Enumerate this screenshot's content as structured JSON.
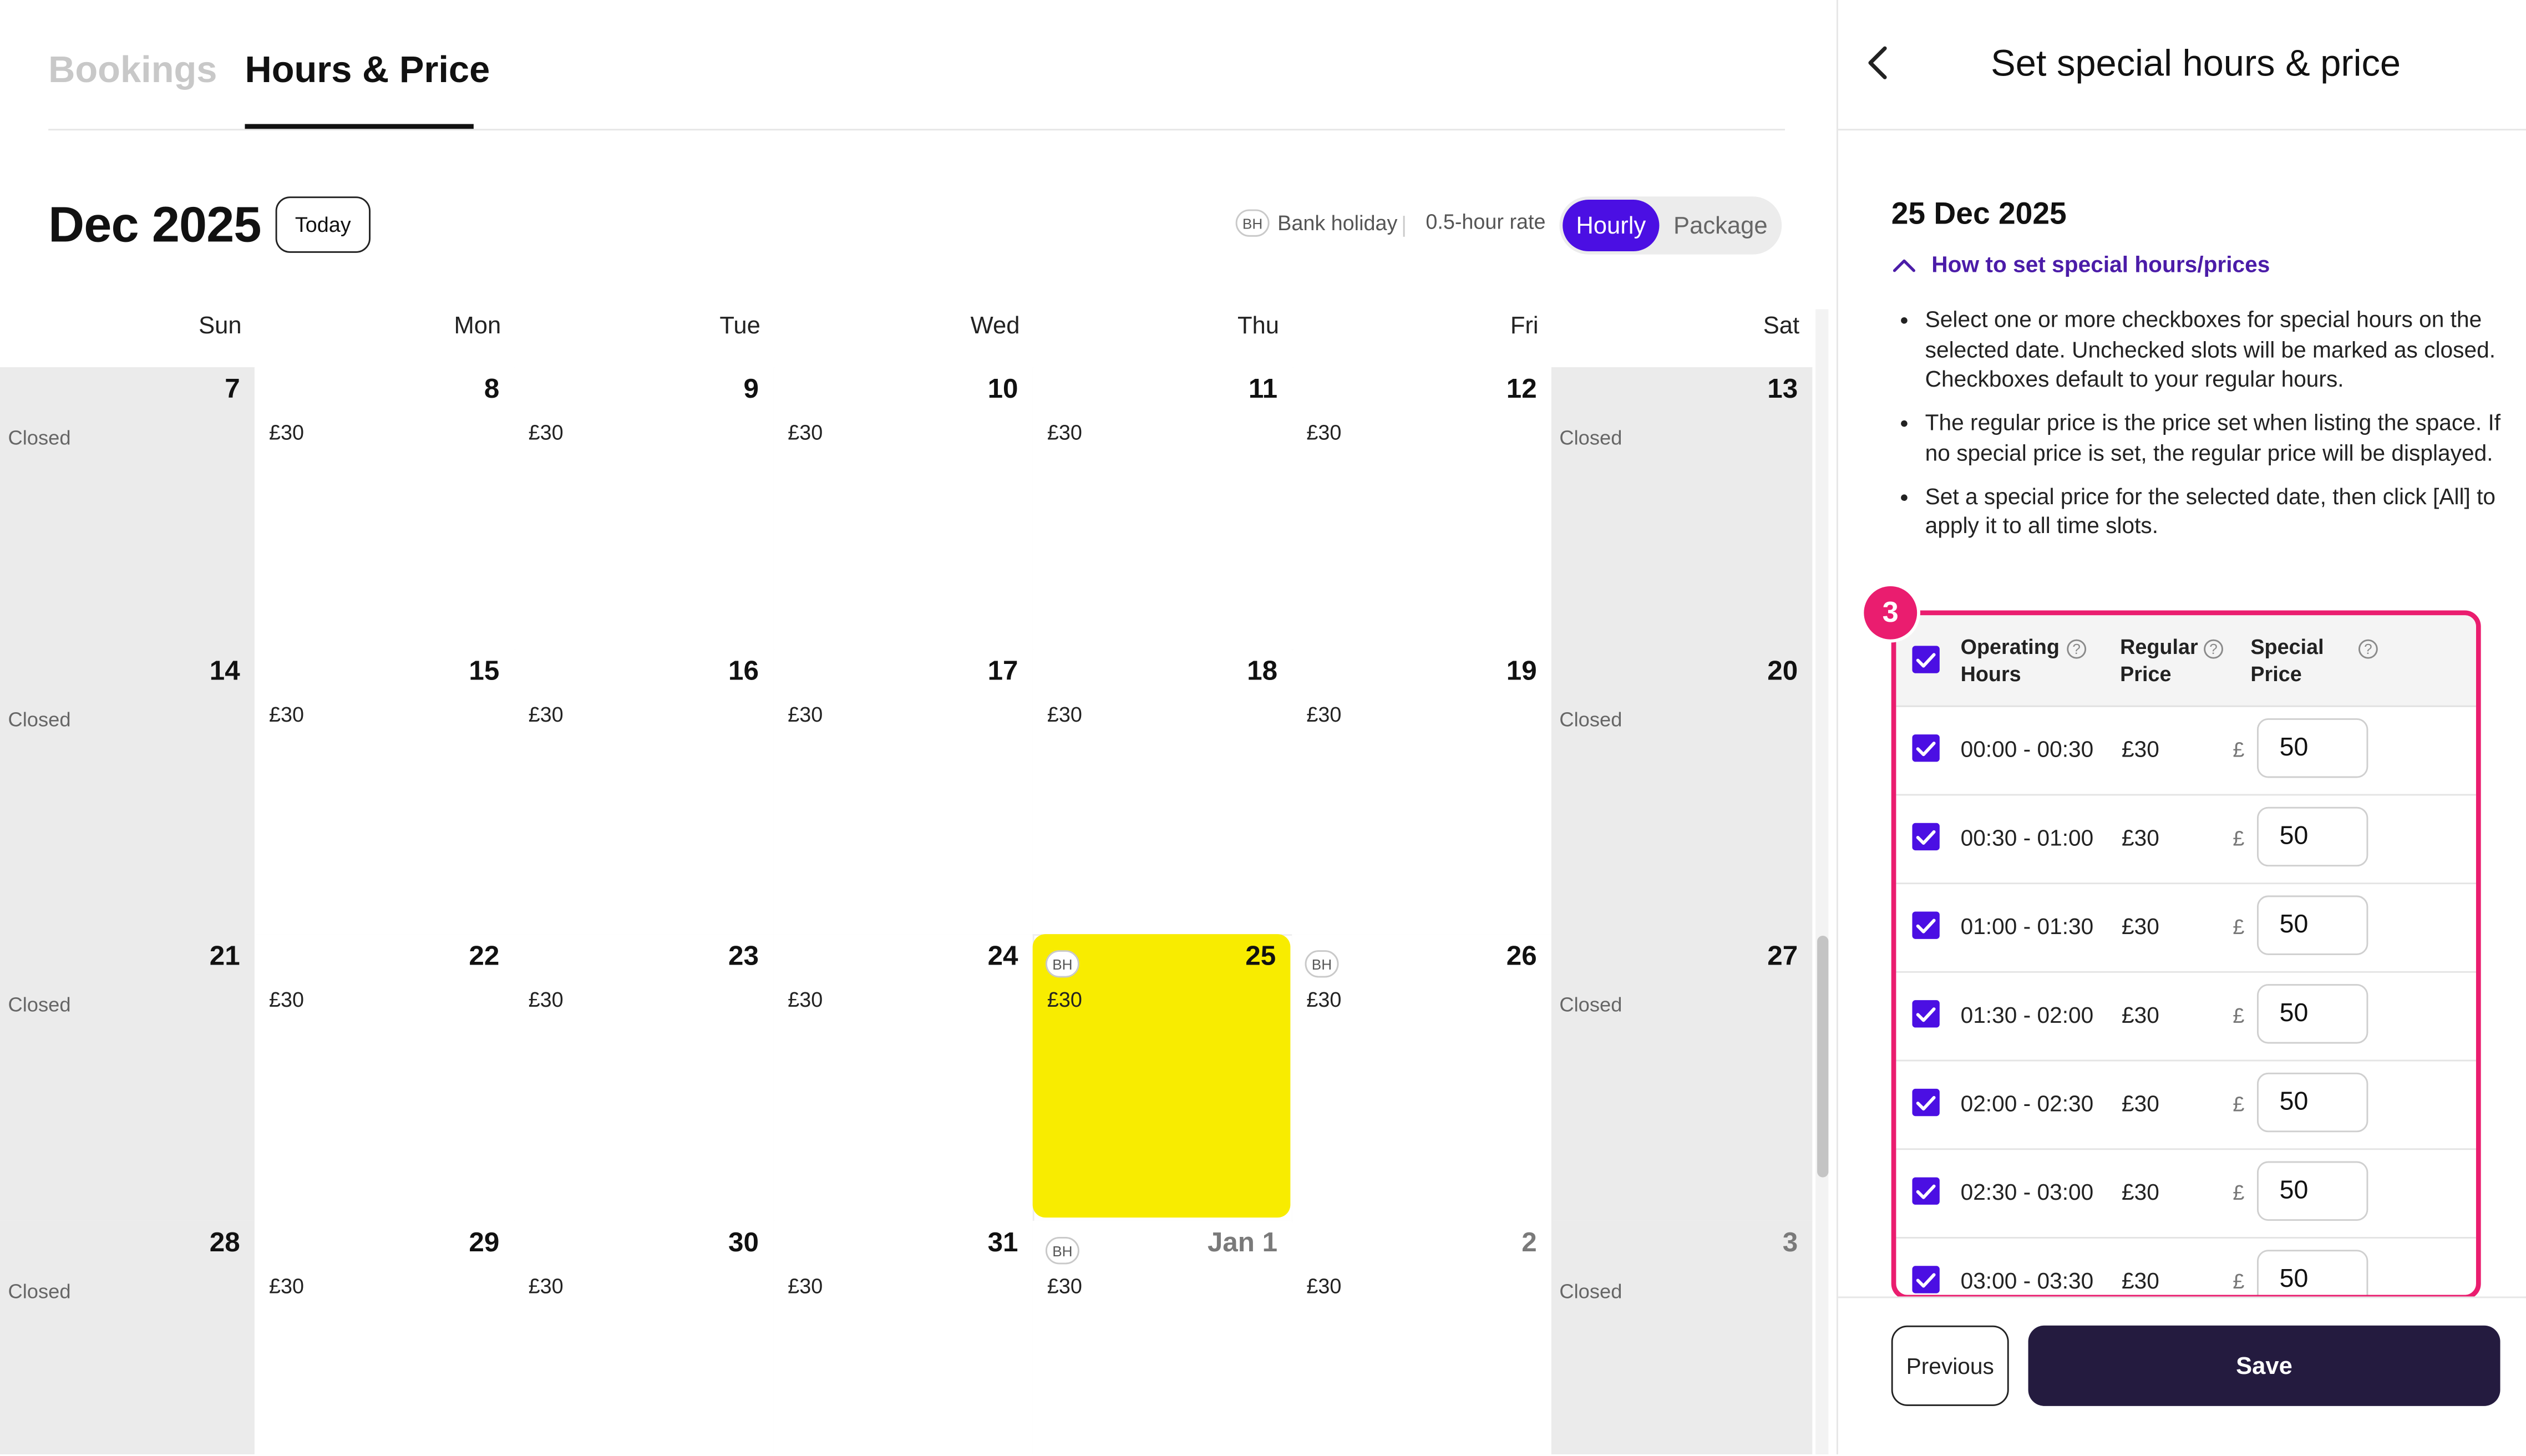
{
  "tabs": {
    "bookings": "Bookings",
    "hours_price": "Hours & Price"
  },
  "calendar": {
    "month_title": "Dec 2025",
    "today_label": "Today",
    "legend": {
      "bh_badge": "BH",
      "bank_holiday": "Bank holiday",
      "half_hour_rate": "0.5-hour rate"
    },
    "rate_toggle": {
      "hourly": "Hourly",
      "package": "Package",
      "selected": "Hourly"
    },
    "weekdays": [
      "Sun",
      "Mon",
      "Tue",
      "Wed",
      "Thu",
      "Fri",
      "Sat"
    ],
    "weeks": [
      [
        {
          "day": "7",
          "label": "Closed"
        },
        {
          "day": "8",
          "label": "£30"
        },
        {
          "day": "9",
          "label": "£30"
        },
        {
          "day": "10",
          "label": "£30"
        },
        {
          "day": "11",
          "label": "£30"
        },
        {
          "day": "12",
          "label": "£30"
        },
        {
          "day": "13",
          "label": "Closed"
        }
      ],
      [
        {
          "day": "14",
          "label": "Closed"
        },
        {
          "day": "15",
          "label": "£30"
        },
        {
          "day": "16",
          "label": "£30"
        },
        {
          "day": "17",
          "label": "£30"
        },
        {
          "day": "18",
          "label": "£30"
        },
        {
          "day": "19",
          "label": "£30"
        },
        {
          "day": "20",
          "label": "Closed"
        }
      ],
      [
        {
          "day": "21",
          "label": "Closed"
        },
        {
          "day": "22",
          "label": "£30"
        },
        {
          "day": "23",
          "label": "£30"
        },
        {
          "day": "24",
          "label": "£30"
        },
        {
          "day": "25",
          "label": "£30",
          "bh": true,
          "selected": true
        },
        {
          "day": "26",
          "label": "£30",
          "bh": true
        },
        {
          "day": "27",
          "label": "Closed"
        }
      ],
      [
        {
          "day": "28",
          "label": "Closed"
        },
        {
          "day": "29",
          "label": "£30"
        },
        {
          "day": "30",
          "label": "£30"
        },
        {
          "day": "31",
          "label": "£30"
        },
        {
          "day": "Jan 1",
          "label": "£30",
          "bh": true,
          "other_month": true
        },
        {
          "day": "2",
          "label": "£30",
          "other_month": true
        },
        {
          "day": "3",
          "label": "Closed",
          "other_month": true
        }
      ]
    ]
  },
  "panel": {
    "title": "Set special hours & price",
    "date": "25 Dec 2025",
    "howto_label": "How to set special hours/prices",
    "instructions": [
      "Select one or more checkboxes for special hours on the selected date. Unchecked slots will be marked as closed. Checkboxes default to your regular hours.",
      "The regular price is the price set when listing the space. If no special price is set, the regular price will be displayed.",
      "Set a special price for the selected date, then click [All] to apply it to all time slots."
    ],
    "step_badge": "3",
    "columns": {
      "hours_line1": "Operating",
      "hours_line2": "Hours",
      "regular_line1": "Regular",
      "regular_line2": "Price",
      "special_line1": "Special",
      "special_line2": "Price"
    },
    "help_glyph": "?",
    "currency": "£",
    "slots": [
      {
        "time": "00:00 - 00:30",
        "regular": "£30",
        "special": "50",
        "checked": true
      },
      {
        "time": "00:30 - 01:00",
        "regular": "£30",
        "special": "50",
        "checked": true
      },
      {
        "time": "01:00 - 01:30",
        "regular": "£30",
        "special": "50",
        "checked": true
      },
      {
        "time": "01:30 - 02:00",
        "regular": "£30",
        "special": "50",
        "checked": true
      },
      {
        "time": "02:00 - 02:30",
        "regular": "£30",
        "special": "50",
        "checked": true
      },
      {
        "time": "02:30 - 03:00",
        "regular": "£30",
        "special": "50",
        "checked": true
      },
      {
        "time": "03:00 - 03:30",
        "regular": "£30",
        "special": "50",
        "checked": true
      }
    ],
    "buttons": {
      "previous": "Previous",
      "save": "Save"
    }
  },
  "colors": {
    "accent": "#4b0fe3",
    "highlight": "#f8ec00",
    "step": "#ea1d6f",
    "save": "#241b3f"
  },
  "icons": {
    "back": "chevron-left-icon",
    "howto": "chevron-up-icon",
    "help": "question-circle-icon",
    "checkbox": "check-icon"
  }
}
